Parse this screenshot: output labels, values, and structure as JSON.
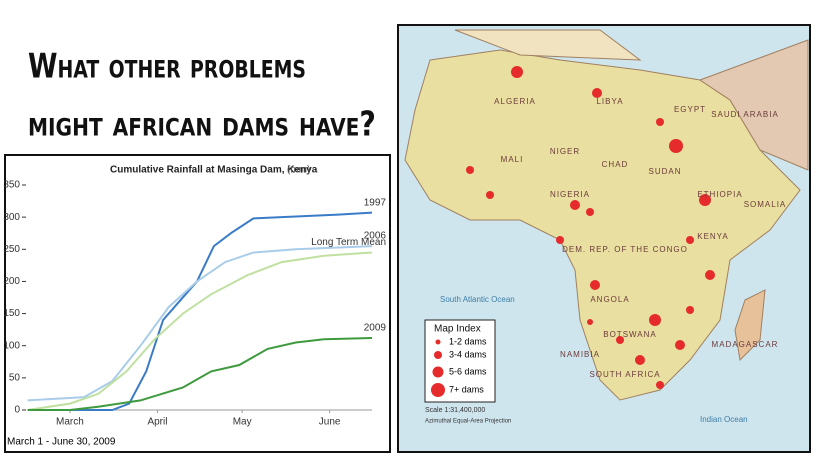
{
  "header": {
    "title_lines": [
      "What other problems",
      "might african dams have?"
    ]
  },
  "chart_data": {
    "type": "line",
    "title": "Cumulative Rainfall at Masinga Dam, Kenya",
    "unit": "(mm)",
    "footnote": "March 1 - June 30, 2009",
    "xlim": [
      0,
      122
    ],
    "xticks": [
      {
        "value": 15,
        "label": "March"
      },
      {
        "value": 46,
        "label": "April"
      },
      {
        "value": 76,
        "label": "May"
      },
      {
        "value": 107,
        "label": "June"
      }
    ],
    "ylim": [
      0,
      350
    ],
    "yticks": [
      0,
      50,
      100,
      150,
      200,
      250,
      300,
      350
    ],
    "series": [
      {
        "name": "1997",
        "color": "#3a7bc8",
        "x": [
          0,
          30,
          36,
          42,
          48,
          54,
          60,
          66,
          72,
          80,
          90,
          100,
          110,
          122
        ],
        "values": [
          0,
          0,
          10,
          60,
          140,
          170,
          200,
          255,
          275,
          298,
          300,
          302,
          304,
          307
        ]
      },
      {
        "name": "2006",
        "color": "#a9cde9",
        "x": [
          0,
          20,
          30,
          40,
          50,
          60,
          70,
          80,
          95,
          122
        ],
        "values": [
          15,
          20,
          45,
          100,
          160,
          200,
          230,
          245,
          250,
          255
        ]
      },
      {
        "name": "Long Term Mean",
        "color": "#bfe0a0",
        "x": [
          0,
          15,
          25,
          35,
          45,
          55,
          65,
          78,
          90,
          105,
          122
        ],
        "values": [
          0,
          10,
          25,
          60,
          110,
          150,
          180,
          210,
          230,
          240,
          245
        ]
      },
      {
        "name": "2009",
        "color": "#3e9a3e",
        "x": [
          0,
          15,
          25,
          40,
          55,
          65,
          75,
          85,
          95,
          105,
          122
        ],
        "values": [
          0,
          0,
          5,
          15,
          35,
          60,
          70,
          95,
          105,
          110,
          112
        ]
      }
    ]
  },
  "map": {
    "countries": [
      "ALGERIA",
      "LIBYA",
      "EGYPT",
      "SUDAN",
      "CHAD",
      "NIGER",
      "MALI",
      "NIGERIA",
      "ETHIOPIA",
      "DEM. REP. OF THE CONGO",
      "ANGOLA",
      "NAMIBIA",
      "BOTSWANA",
      "SOUTH AFRICA",
      "MADAGASCAR",
      "KENYA",
      "SOMALIA",
      "SAUDI ARABIA"
    ],
    "oceans": [
      "South Atlantic Ocean",
      "Indian Ocean"
    ],
    "legend": {
      "title": "Map Index",
      "items": [
        "1-2 dams",
        "3-4 dams",
        "5-6 dams",
        "7+ dams"
      ]
    },
    "scale": "Scale 1:31,400,000",
    "projection": "Azimuthal Equal-Area Projection"
  }
}
